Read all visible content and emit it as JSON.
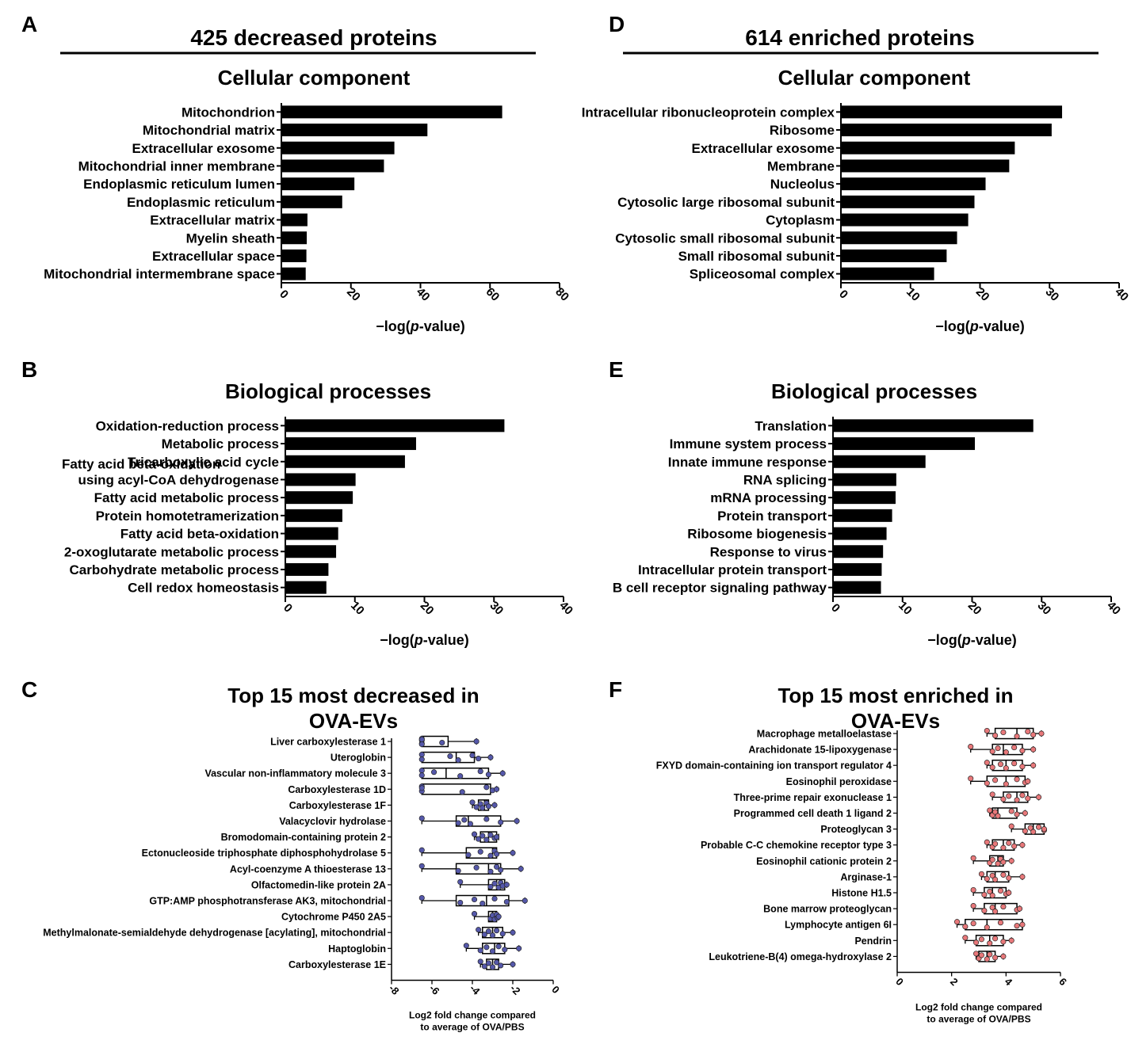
{
  "figure": {
    "panel_labels": [
      "A",
      "B",
      "C",
      "D",
      "E",
      "F"
    ],
    "left_header": "425 decreased proteins",
    "right_header": "614 enriched proteins"
  },
  "chart_data": [
    {
      "id": "A",
      "type": "bar",
      "orientation": "horizontal",
      "title": "Cellular component",
      "xlabel": "−log(p-value)",
      "xlabel_parts": [
        "−log(",
        "p",
        "-value)"
      ],
      "xlim": [
        0,
        80
      ],
      "xticks": [
        0,
        20,
        40,
        60,
        80
      ],
      "categories": [
        "Mitochondrion",
        "Mitochondrial matrix",
        "Extracellular exosome",
        "Mitochondrial inner membrane",
        "Endoplasmic reticulum lumen",
        "Endoplasmic reticulum",
        "Extracellular matrix",
        "Myelin sheath",
        "Extracellular space",
        "Mitochondrial intermembrane space"
      ],
      "values": [
        63.5,
        42,
        32.5,
        29.5,
        21,
        17.5,
        7.5,
        7.3,
        7.2,
        7
      ]
    },
    {
      "id": "B",
      "type": "bar",
      "orientation": "horizontal",
      "title": "Biological processes",
      "xlabel": "−log(p-value)",
      "xlabel_parts": [
        "−log(",
        "p",
        "-value)"
      ],
      "xlim": [
        0,
        40
      ],
      "xticks": [
        0,
        10,
        20,
        30,
        40
      ],
      "categories": [
        "Oxidation-reduction process",
        "Metabolic process",
        "Tricarboxylic acid cycle",
        "Fatty acid beta-oxidation using acyl-CoA dehydrogenase",
        "Fatty acid metabolic process",
        "Protein homotetramerization",
        "Fatty acid beta-oxidation",
        "2-oxoglutarate metabolic process",
        "Carbohydrate metabolic process",
        "Cell redox homeostasis"
      ],
      "category_lines": [
        [
          "Oxidation-reduction process"
        ],
        [
          "Metabolic process"
        ],
        [
          "Tricarboxylic acid cycle"
        ],
        [
          "Fatty acid beta-oxidation",
          "using acyl-CoA dehydrogenase"
        ],
        [
          "Fatty acid metabolic process"
        ],
        [
          "Protein homotetramerization"
        ],
        [
          "Fatty acid beta-oxidation"
        ],
        [
          "2-oxoglutarate metabolic process"
        ],
        [
          "Carbohydrate metabolic process"
        ],
        [
          "Cell redox homeostasis"
        ]
      ],
      "values": [
        31.5,
        18.8,
        17.2,
        10.1,
        9.7,
        8.2,
        7.6,
        7.3,
        6.2,
        5.9
      ]
    },
    {
      "id": "C",
      "type": "box",
      "orientation": "horizontal",
      "title_lines": [
        "Top 15 most decreased in",
        "OVA-EVs"
      ],
      "xlabel_lines": [
        "Log2 fold change compared",
        "to average of OVA/PBS"
      ],
      "xlim": [
        -8,
        0
      ],
      "xticks": [
        -8,
        -6,
        -4,
        -2,
        0
      ],
      "color": "#5558aa",
      "categories": [
        "Liver carboxylesterase 1",
        "Uteroglobin",
        "Vascular non-inflammatory molecule 3",
        "Carboxylesterase 1D",
        "Carboxylesterase 1F",
        "Valacyclovir hydrolase",
        "Bromodomain-containing protein 2",
        "Ectonucleoside triphosphate diphosphohydrolase 5",
        "Acyl-coenzyme A thioesterase 13",
        "Olfactomedin-like protein 2A",
        "GTP:AMP phosphotransferase AK3, mitochondrial",
        "Cytochrome P450 2A5",
        "Methylmalonate-semialdehyde dehydrogenase [acylating], mitochondrial",
        "Haptoglobin",
        "Carboxylesterase 1E"
      ],
      "boxes": [
        {
          "min": -6.5,
          "q1": -6.5,
          "median": -6.5,
          "q3": -5.2,
          "max": -3.8,
          "points": [
            -6.5,
            -6.5,
            -6.5,
            -6.5,
            -6.5,
            -5.5,
            -3.8
          ]
        },
        {
          "min": -6.5,
          "q1": -6.5,
          "median": -4.8,
          "q3": -3.9,
          "max": -3.1,
          "points": [
            -6.5,
            -6.5,
            -5.1,
            -4.7,
            -4.0,
            -3.7,
            -3.1
          ]
        },
        {
          "min": -6.5,
          "q1": -6.5,
          "median": -5.3,
          "q3": -3.2,
          "max": -2.5,
          "points": [
            -6.5,
            -6.5,
            -5.9,
            -4.6,
            -3.6,
            -3.2,
            -2.5
          ]
        },
        {
          "min": -6.5,
          "q1": -6.5,
          "median": -6.5,
          "q3": -3.1,
          "max": -2.8,
          "points": [
            -6.5,
            -6.5,
            -6.5,
            -4.5,
            -3.3,
            -3.0,
            -2.8
          ]
        },
        {
          "min": -4.0,
          "q1": -3.7,
          "median": -3.4,
          "q3": -3.2,
          "max": -2.9,
          "points": [
            -4.0,
            -3.8,
            -3.6,
            -3.5,
            -3.3,
            -3.2,
            -2.9
          ]
        },
        {
          "min": -6.5,
          "q1": -4.8,
          "median": -4.2,
          "q3": -2.6,
          "max": -1.8,
          "points": [
            -6.5,
            -4.7,
            -4.4,
            -4.1,
            -3.3,
            -2.6,
            -1.8
          ]
        },
        {
          "min": -3.9,
          "q1": -3.6,
          "median": -3.2,
          "q3": -2.8,
          "max": -2.7,
          "points": [
            -3.9,
            -3.7,
            -3.5,
            -3.3,
            -3.1,
            -2.9,
            -2.8
          ]
        },
        {
          "min": -6.5,
          "q1": -4.3,
          "median": -3.0,
          "q3": -2.8,
          "max": -2.0,
          "points": [
            -6.5,
            -4.2,
            -3.6,
            -3.1,
            -2.9,
            -2.8,
            -2.0
          ]
        },
        {
          "min": -6.5,
          "q1": -4.8,
          "median": -3.2,
          "q3": -2.6,
          "max": -1.6,
          "points": [
            -6.5,
            -4.7,
            -3.8,
            -3.1,
            -2.8,
            -2.6,
            -1.6
          ]
        },
        {
          "min": -4.6,
          "q1": -3.2,
          "median": -2.8,
          "q3": -2.4,
          "max": -2.3,
          "points": [
            -4.6,
            -3.1,
            -2.9,
            -2.7,
            -2.6,
            -2.5,
            -2.3
          ]
        },
        {
          "min": -6.5,
          "q1": -4.8,
          "median": -3.3,
          "q3": -2.2,
          "max": -1.4,
          "points": [
            -6.5,
            -4.6,
            -3.9,
            -3.5,
            -2.9,
            -2.3,
            -1.4
          ]
        },
        {
          "min": -3.9,
          "q1": -3.2,
          "median": -3.0,
          "q3": -2.8,
          "max": -2.7,
          "points": [
            -3.9,
            -3.1,
            -3.0,
            -2.9,
            -2.8,
            -2.75,
            -2.7
          ]
        },
        {
          "min": -3.7,
          "q1": -3.5,
          "median": -3.0,
          "q3": -2.5,
          "max": -2.0,
          "points": [
            -3.7,
            -3.4,
            -3.2,
            -3.0,
            -2.8,
            -2.5,
            -2.0
          ]
        },
        {
          "min": -4.3,
          "q1": -3.5,
          "median": -2.9,
          "q3": -2.4,
          "max": -1.7,
          "points": [
            -4.3,
            -3.6,
            -3.3,
            -3.0,
            -2.7,
            -2.4,
            -1.7
          ]
        },
        {
          "min": -3.6,
          "q1": -3.3,
          "median": -3.0,
          "q3": -2.7,
          "max": -2.0,
          "points": [
            -3.6,
            -3.4,
            -3.2,
            -3.0,
            -2.8,
            -2.6,
            -2.0
          ]
        }
      ]
    },
    {
      "id": "D",
      "type": "bar",
      "orientation": "horizontal",
      "title": "Cellular component",
      "xlabel": "−log(p-value)",
      "xlabel_parts": [
        "−log(",
        "p",
        "-value)"
      ],
      "xlim": [
        0,
        40
      ],
      "xticks": [
        0,
        10,
        20,
        30,
        40
      ],
      "categories": [
        "Intracellular ribonucleoprotein complex",
        "Ribosome",
        "Extracellular exosome",
        "Membrane",
        "Nucleolus",
        "Cytosolic large ribosomal subunit",
        "Cytoplasm",
        "Cytosolic small ribosomal subunit",
        "Small ribosomal subunit",
        "Spliceosomal complex"
      ],
      "values": [
        31.8,
        30.3,
        25,
        24.2,
        20.8,
        19.2,
        18.3,
        16.7,
        15.2,
        13.4
      ]
    },
    {
      "id": "E",
      "type": "bar",
      "orientation": "horizontal",
      "title": "Biological processes",
      "xlabel": "−log(p-value)",
      "xlabel_parts": [
        "−log(",
        "p",
        "-value)"
      ],
      "xlim": [
        0,
        40
      ],
      "xticks": [
        0,
        10,
        20,
        30,
        40
      ],
      "categories": [
        "Translation",
        "Immune system process",
        "Innate immune response",
        "RNA splicing",
        "mRNA processing",
        "Protein transport",
        "Ribosome biogenesis",
        "Response to virus",
        "Intracellular protein transport",
        "B cell receptor signaling pathway"
      ],
      "values": [
        28.8,
        20.4,
        13.3,
        9.1,
        9.0,
        8.5,
        7.7,
        7.2,
        7.0,
        6.9
      ]
    },
    {
      "id": "F",
      "type": "box",
      "orientation": "horizontal",
      "title_lines": [
        "Top 15 most enriched in",
        "OVA-EVs"
      ],
      "xlabel_lines": [
        "Log2 fold change compared",
        "to average of OVA/PBS"
      ],
      "xlim": [
        0,
        6
      ],
      "xticks": [
        0,
        2,
        4,
        6
      ],
      "color": "#e8787a",
      "categories": [
        "Macrophage metalloelastase",
        "Arachidonate 15-lipoxygenase",
        "FXYD domain-containing ion transport regulator 4",
        "Eosinophil peroxidase",
        "Three-prime repair exonuclease 1",
        "Programmed cell death 1 ligand 2",
        "Proteoglycan 3",
        "Probable C-C chemokine receptor type 3",
        "Eosinophil cationic protein 2",
        "Arginase-1",
        "Histone H1.5",
        "Bone marrow proteoglycan",
        "Lymphocyte antigen 6I",
        "Pendrin",
        "Leukotriene-B(4) omega-hydroxylase 2"
      ],
      "boxes": [
        {
          "min": 3.3,
          "q1": 3.6,
          "median": 4.4,
          "q3": 5.0,
          "max": 5.3,
          "points": [
            3.3,
            3.6,
            3.9,
            4.4,
            4.8,
            5.0,
            5.3
          ]
        },
        {
          "min": 2.7,
          "q1": 3.5,
          "median": 3.9,
          "q3": 4.6,
          "max": 5.0,
          "points": [
            2.7,
            3.5,
            3.7,
            4.0,
            4.3,
            4.6,
            5.0
          ]
        },
        {
          "min": 3.3,
          "q1": 3.5,
          "median": 4.0,
          "q3": 4.6,
          "max": 5.0,
          "points": [
            3.3,
            3.5,
            3.8,
            4.0,
            4.3,
            4.6,
            5.0
          ]
        },
        {
          "min": 2.7,
          "q1": 3.3,
          "median": 4.0,
          "q3": 4.7,
          "max": 4.8,
          "points": [
            2.7,
            3.3,
            3.6,
            4.0,
            4.4,
            4.7,
            4.8
          ]
        },
        {
          "min": 3.5,
          "q1": 3.9,
          "median": 4.4,
          "q3": 4.8,
          "max": 5.2,
          "points": [
            3.5,
            3.9,
            4.1,
            4.4,
            4.6,
            4.8,
            5.2
          ]
        },
        {
          "min": 3.4,
          "q1": 3.5,
          "median": 3.7,
          "q3": 4.4,
          "max": 4.7,
          "points": [
            3.4,
            3.5,
            3.6,
            3.7,
            4.2,
            4.4,
            4.7
          ]
        },
        {
          "min": 4.2,
          "q1": 4.7,
          "median": 5.0,
          "q3": 5.4,
          "max": 5.4,
          "points": [
            4.2,
            4.7,
            4.9,
            5.0,
            5.2,
            5.4,
            5.4
          ]
        },
        {
          "min": 3.3,
          "q1": 3.5,
          "median": 3.9,
          "q3": 4.3,
          "max": 4.6,
          "points": [
            3.3,
            3.5,
            3.6,
            3.9,
            4.1,
            4.3,
            4.6
          ]
        },
        {
          "min": 2.8,
          "q1": 3.4,
          "median": 3.7,
          "q3": 3.9,
          "max": 4.2,
          "points": [
            2.8,
            3.4,
            3.5,
            3.7,
            3.8,
            3.9,
            4.2
          ]
        },
        {
          "min": 3.1,
          "q1": 3.3,
          "median": 3.6,
          "q3": 4.1,
          "max": 4.6,
          "points": [
            3.1,
            3.3,
            3.5,
            3.6,
            3.9,
            4.1,
            4.6
          ]
        },
        {
          "min": 2.8,
          "q1": 3.2,
          "median": 3.5,
          "q3": 4.0,
          "max": 4.1,
          "points": [
            2.8,
            3.2,
            3.4,
            3.5,
            3.8,
            4.0,
            4.1
          ]
        },
        {
          "min": 2.8,
          "q1": 3.2,
          "median": 3.6,
          "q3": 4.4,
          "max": 4.5,
          "points": [
            2.8,
            3.2,
            3.5,
            3.6,
            3.9,
            4.4,
            4.5
          ]
        },
        {
          "min": 2.2,
          "q1": 2.5,
          "median": 3.3,
          "q3": 4.6,
          "max": 4.6,
          "points": [
            2.2,
            2.5,
            2.8,
            3.3,
            3.8,
            4.4,
            4.6
          ]
        },
        {
          "min": 2.5,
          "q1": 2.9,
          "median": 3.4,
          "q3": 3.9,
          "max": 4.2,
          "points": [
            2.5,
            2.9,
            3.1,
            3.4,
            3.6,
            3.9,
            4.2
          ]
        },
        {
          "min": 2.9,
          "q1": 3.0,
          "median": 3.3,
          "q3": 3.6,
          "max": 3.9,
          "points": [
            2.9,
            3.0,
            3.1,
            3.3,
            3.4,
            3.6,
            3.9
          ]
        }
      ]
    }
  ]
}
